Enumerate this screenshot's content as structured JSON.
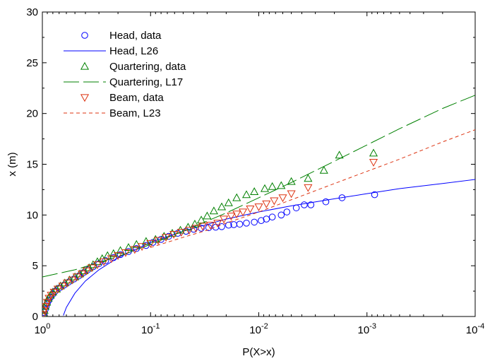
{
  "chart_data": {
    "type": "scatter",
    "xlabel": "P(X>x)",
    "ylabel": "x (m)",
    "xscale": "log",
    "xdirection": "reversed",
    "xlim": [
      1,
      0.0001
    ],
    "ylim": [
      0,
      30
    ],
    "x_tick_labels": [
      {
        "base": "10",
        "exp": "0"
      },
      {
        "base": "10",
        "exp": "-1"
      },
      {
        "base": "10",
        "exp": "-2"
      },
      {
        "base": "10",
        "exp": "-3"
      },
      {
        "base": "10",
        "exp": "-4"
      }
    ],
    "x_tick_values": [
      1,
      0.1,
      0.01,
      0.001,
      0.0001
    ],
    "y_ticks": [
      0,
      5,
      10,
      15,
      20,
      25,
      30
    ],
    "grid": false,
    "legend_position": "top-left",
    "colors": {
      "head": "#0000ff",
      "quartering": "#008000",
      "beam": "#dd3311"
    },
    "series": [
      {
        "name": "Head, data",
        "kind": "markers",
        "marker": "circle",
        "color": "#0000ff",
        "points": [
          [
            0.98,
            0.1
          ],
          [
            0.96,
            0.4
          ],
          [
            0.94,
            0.7
          ],
          [
            0.92,
            1.0
          ],
          [
            0.9,
            1.3
          ],
          [
            0.87,
            1.6
          ],
          [
            0.84,
            1.9
          ],
          [
            0.8,
            2.2
          ],
          [
            0.76,
            2.5
          ],
          [
            0.7,
            2.8
          ],
          [
            0.63,
            3.1
          ],
          [
            0.57,
            3.4
          ],
          [
            0.51,
            3.7
          ],
          [
            0.46,
            4.0
          ],
          [
            0.42,
            4.3
          ],
          [
            0.38,
            4.6
          ],
          [
            0.34,
            4.9
          ],
          [
            0.3,
            5.2
          ],
          [
            0.26,
            5.5
          ],
          [
            0.22,
            5.8
          ],
          [
            0.19,
            6.1
          ],
          [
            0.16,
            6.4
          ],
          [
            0.135,
            6.7
          ],
          [
            0.11,
            7.0
          ],
          [
            0.095,
            7.3
          ],
          [
            0.08,
            7.6
          ],
          [
            0.068,
            7.9
          ],
          [
            0.056,
            8.2
          ],
          [
            0.047,
            8.4
          ],
          [
            0.04,
            8.6
          ],
          [
            0.034,
            8.7
          ],
          [
            0.029,
            8.75
          ],
          [
            0.025,
            8.8
          ],
          [
            0.022,
            8.85
          ],
          [
            0.019,
            9.0
          ],
          [
            0.017,
            9.05
          ],
          [
            0.015,
            9.1
          ],
          [
            0.013,
            9.2
          ],
          [
            0.011,
            9.3
          ],
          [
            0.0095,
            9.45
          ],
          [
            0.0085,
            9.6
          ],
          [
            0.0075,
            9.8
          ],
          [
            0.0062,
            10.0
          ],
          [
            0.0055,
            10.3
          ],
          [
            0.0045,
            10.7
          ],
          [
            0.0038,
            11.0
          ],
          [
            0.0033,
            11.0
          ],
          [
            0.0024,
            11.3
          ],
          [
            0.0017,
            11.7
          ],
          [
            0.00085,
            12.0
          ]
        ]
      },
      {
        "name": "Head, L26",
        "kind": "line",
        "dash": "solid",
        "color": "#0000ff",
        "points": [
          [
            0.64,
            0.1
          ],
          [
            0.6,
            0.9
          ],
          [
            0.5,
            2.3
          ],
          [
            0.4,
            3.5
          ],
          [
            0.3,
            4.6
          ],
          [
            0.2,
            5.8
          ],
          [
            0.1,
            7.3
          ],
          [
            0.05,
            8.4
          ],
          [
            0.02,
            9.6
          ],
          [
            0.01,
            10.3
          ],
          [
            0.005,
            10.9
          ],
          [
            0.002,
            11.6
          ],
          [
            0.001,
            12.1
          ],
          [
            0.0005,
            12.6
          ],
          [
            0.0002,
            13.1
          ],
          [
            0.0001,
            13.5
          ]
        ]
      },
      {
        "name": "Quartering, data",
        "kind": "markers",
        "marker": "triangle-up",
        "color": "#008000",
        "points": [
          [
            0.98,
            0.2
          ],
          [
            0.96,
            0.6
          ],
          [
            0.94,
            1.0
          ],
          [
            0.91,
            1.4
          ],
          [
            0.88,
            1.8
          ],
          [
            0.84,
            2.1
          ],
          [
            0.8,
            2.4
          ],
          [
            0.74,
            2.7
          ],
          [
            0.68,
            3.0
          ],
          [
            0.62,
            3.3
          ],
          [
            0.56,
            3.6
          ],
          [
            0.5,
            3.9
          ],
          [
            0.45,
            4.2
          ],
          [
            0.41,
            4.5
          ],
          [
            0.37,
            4.8
          ],
          [
            0.34,
            5.1
          ],
          [
            0.31,
            5.4
          ],
          [
            0.28,
            5.7
          ],
          [
            0.25,
            6.0
          ],
          [
            0.22,
            6.2
          ],
          [
            0.19,
            6.5
          ],
          [
            0.16,
            6.8
          ],
          [
            0.135,
            7.1
          ],
          [
            0.11,
            7.4
          ],
          [
            0.09,
            7.6
          ],
          [
            0.075,
            7.9
          ],
          [
            0.063,
            8.2
          ],
          [
            0.053,
            8.5
          ],
          [
            0.045,
            8.8
          ],
          [
            0.039,
            9.1
          ],
          [
            0.034,
            9.5
          ],
          [
            0.03,
            9.9
          ],
          [
            0.026,
            10.4
          ],
          [
            0.022,
            10.8
          ],
          [
            0.019,
            11.2
          ],
          [
            0.016,
            11.7
          ],
          [
            0.013,
            12.0
          ],
          [
            0.011,
            12.3
          ],
          [
            0.0088,
            12.6
          ],
          [
            0.0075,
            12.8
          ],
          [
            0.0062,
            12.9
          ],
          [
            0.005,
            13.3
          ],
          [
            0.0035,
            13.6
          ],
          [
            0.0025,
            14.4
          ],
          [
            0.0018,
            15.9
          ],
          [
            0.00087,
            16.1
          ]
        ]
      },
      {
        "name": "Quartering, L17",
        "kind": "line",
        "dash": "long-dash",
        "color": "#008000",
        "points": [
          [
            1,
            3.9
          ],
          [
            0.5,
            4.6
          ],
          [
            0.2,
            5.9
          ],
          [
            0.1,
            7.1
          ],
          [
            0.05,
            8.4
          ],
          [
            0.02,
            10.2
          ],
          [
            0.01,
            11.7
          ],
          [
            0.005,
            13.2
          ],
          [
            0.002,
            15.3
          ],
          [
            0.001,
            16.9
          ],
          [
            0.0005,
            18.5
          ],
          [
            0.0002,
            20.5
          ],
          [
            0.0001,
            21.8
          ]
        ]
      },
      {
        "name": "Beam, data",
        "kind": "markers",
        "marker": "triangle-down",
        "color": "#dd3311",
        "points": [
          [
            0.98,
            0.2
          ],
          [
            0.96,
            0.6
          ],
          [
            0.93,
            1.0
          ],
          [
            0.9,
            1.4
          ],
          [
            0.87,
            1.8
          ],
          [
            0.83,
            2.1
          ],
          [
            0.78,
            2.4
          ],
          [
            0.72,
            2.7
          ],
          [
            0.65,
            3.0
          ],
          [
            0.59,
            3.3
          ],
          [
            0.53,
            3.6
          ],
          [
            0.48,
            3.9
          ],
          [
            0.43,
            4.2
          ],
          [
            0.39,
            4.5
          ],
          [
            0.35,
            4.8
          ],
          [
            0.31,
            5.1
          ],
          [
            0.27,
            5.4
          ],
          [
            0.23,
            5.7
          ],
          [
            0.2,
            6.0
          ],
          [
            0.17,
            6.3
          ],
          [
            0.14,
            6.6
          ],
          [
            0.12,
            6.9
          ],
          [
            0.1,
            7.2
          ],
          [
            0.085,
            7.5
          ],
          [
            0.072,
            7.8
          ],
          [
            0.061,
            8.1
          ],
          [
            0.052,
            8.3
          ],
          [
            0.044,
            8.5
          ],
          [
            0.038,
            8.7
          ],
          [
            0.033,
            8.9
          ],
          [
            0.028,
            9.0
          ],
          [
            0.024,
            9.2
          ],
          [
            0.021,
            9.6
          ],
          [
            0.018,
            9.9
          ],
          [
            0.016,
            10.1
          ],
          [
            0.014,
            10.3
          ],
          [
            0.012,
            10.6
          ],
          [
            0.01,
            10.8
          ],
          [
            0.0085,
            11.1
          ],
          [
            0.0072,
            11.4
          ],
          [
            0.006,
            11.7
          ],
          [
            0.005,
            12.1
          ],
          [
            0.0035,
            12.7
          ],
          [
            0.00087,
            15.2
          ]
        ]
      },
      {
        "name": "Beam, L23",
        "kind": "line",
        "dash": "short-dash",
        "color": "#dd3311",
        "points": [
          [
            0.1,
            6.8
          ],
          [
            0.05,
            7.8
          ],
          [
            0.03,
            8.5
          ],
          [
            0.02,
            9.2
          ],
          [
            0.01,
            10.3
          ],
          [
            0.005,
            11.5
          ],
          [
            0.002,
            13.1
          ],
          [
            0.001,
            14.3
          ],
          [
            0.0005,
            15.5
          ],
          [
            0.0002,
            17.2
          ],
          [
            0.0001,
            18.4
          ]
        ]
      }
    ]
  }
}
